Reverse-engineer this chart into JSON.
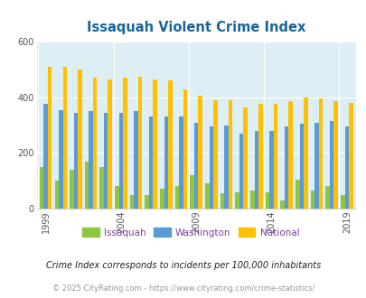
{
  "title": "Issaquah Violent Crime Index",
  "title_color": "#1a6699",
  "years": [
    1999,
    2000,
    2001,
    2002,
    2003,
    2004,
    2005,
    2006,
    2007,
    2008,
    2009,
    2010,
    2011,
    2012,
    2013,
    2014,
    2015,
    2016,
    2017,
    2018,
    2019,
    2020
  ],
  "issaquah": [
    148,
    100,
    140,
    170,
    150,
    80,
    50,
    50,
    70,
    80,
    120,
    90,
    55,
    60,
    65,
    60,
    30,
    105,
    65,
    80,
    50,
    0
  ],
  "washington": [
    375,
    355,
    345,
    350,
    345,
    345,
    350,
    330,
    330,
    330,
    310,
    295,
    300,
    270,
    280,
    280,
    295,
    305,
    310,
    315,
    295,
    0
  ],
  "national": [
    510,
    510,
    500,
    470,
    465,
    470,
    475,
    465,
    460,
    430,
    405,
    390,
    390,
    365,
    375,
    375,
    385,
    400,
    395,
    385,
    380,
    0
  ],
  "issaquah_color": "#8dc63f",
  "washington_color": "#5b9bd5",
  "national_color": "#ffc000",
  "bg_color": "#deeef5",
  "ylim": [
    0,
    600
  ],
  "yticks": [
    0,
    200,
    400,
    600
  ],
  "xtick_years": [
    1999,
    2004,
    2009,
    2014,
    2019
  ],
  "subtitle": "Crime Index corresponds to incidents per 100,000 inhabitants",
  "footer": "© 2025 CityRating.com - https://www.cityrating.com/crime-statistics/",
  "legend_labels": [
    "Issaquah",
    "Washington",
    "National"
  ],
  "bar_width": 0.27
}
